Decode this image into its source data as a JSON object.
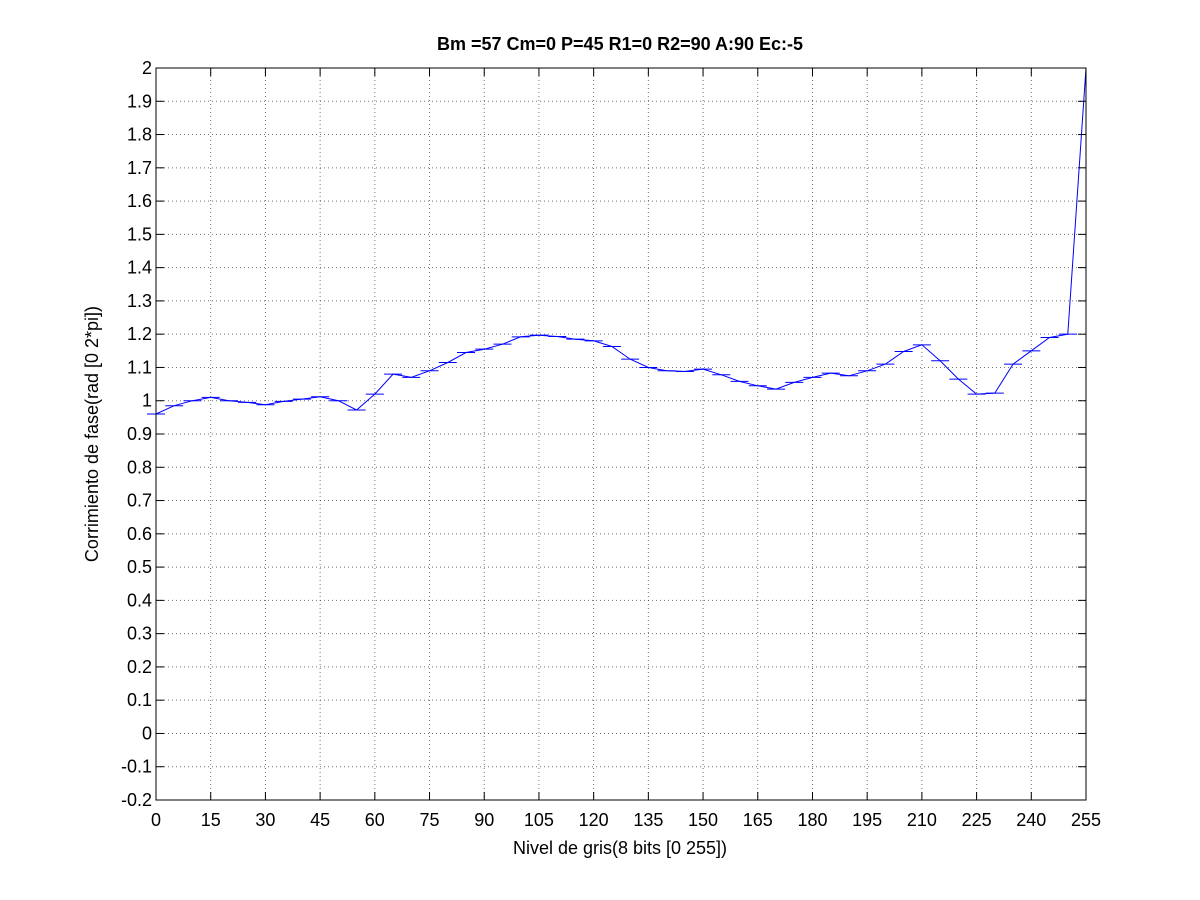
{
  "chart_data": {
    "type": "line",
    "title": "Bm =57  Cm=0  P=45  R1=0  R2=90  A:90  Ec:-5",
    "xlabel": "Nivel de gris(8 bits [0 255])",
    "ylabel": "Corrimiento de fase(rad [0 2*pi])",
    "xlim": [
      0,
      255
    ],
    "ylim": [
      -0.2,
      2
    ],
    "xticks": [
      0,
      15,
      30,
      45,
      60,
      75,
      90,
      105,
      120,
      135,
      150,
      165,
      180,
      195,
      210,
      225,
      240,
      255
    ],
    "yticks": [
      -0.2,
      -0.1,
      0,
      0.1,
      0.2,
      0.3,
      0.4,
      0.5,
      0.6,
      0.7,
      0.8,
      0.9,
      1,
      1.1,
      1.2,
      1.3,
      1.4,
      1.5,
      1.6,
      1.7,
      1.8,
      1.9,
      2
    ],
    "ytick_labels": [
      "-0.2",
      "-0.1",
      "0",
      "0.1",
      "0.2",
      "0.3",
      "0.4",
      "0.5",
      "0.6",
      "0.7",
      "0.8",
      "0.9",
      "1",
      "1.1",
      "1.2",
      "1.3",
      "1.4",
      "1.5",
      "1.6",
      "1.7",
      "1.8",
      "1.9",
      "2"
    ],
    "grid": true,
    "color": "#0000ff",
    "series": [
      {
        "x": [
          0,
          5,
          10,
          15,
          20,
          25,
          30,
          35,
          40,
          45,
          50,
          55,
          60,
          65,
          70,
          75,
          80,
          85,
          90,
          95,
          100,
          105,
          110,
          115,
          120,
          125,
          130,
          135,
          140,
          145,
          150,
          155,
          160,
          165,
          170,
          175,
          180,
          185,
          190,
          195,
          200,
          205,
          210,
          215,
          220,
          225,
          230,
          235,
          240,
          245,
          250,
          255
        ],
        "y": [
          0.96,
          0.985,
          1.0,
          1.01,
          1.0,
          0.995,
          0.988,
          0.998,
          1.005,
          1.012,
          1.0,
          0.972,
          1.02,
          1.08,
          1.07,
          1.09,
          1.115,
          1.145,
          1.155,
          1.17,
          1.192,
          1.197,
          1.193,
          1.185,
          1.18,
          1.163,
          1.125,
          1.1,
          1.09,
          1.088,
          1.095,
          1.078,
          1.058,
          1.045,
          1.035,
          1.055,
          1.07,
          1.083,
          1.075,
          1.09,
          1.11,
          1.148,
          1.168,
          1.12,
          1.065,
          1.02,
          1.023,
          1.11,
          1.15,
          1.19,
          1.2,
          2.0
        ]
      }
    ]
  }
}
